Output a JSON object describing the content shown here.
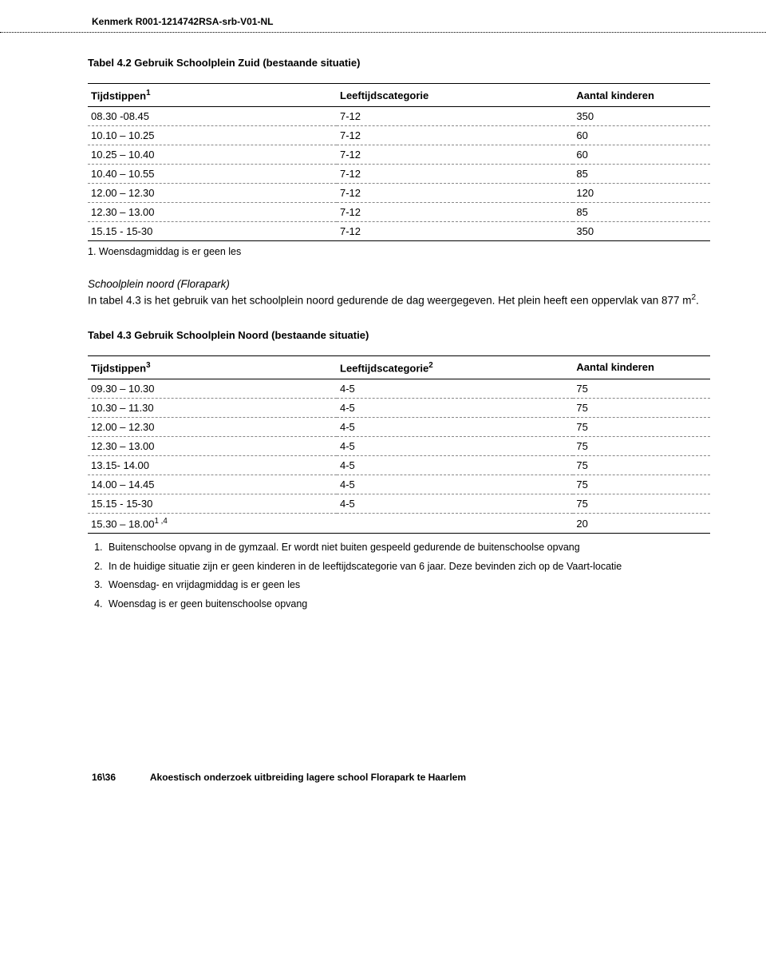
{
  "header_ref": "Kenmerk R001-1214742RSA-srb-V01-NL",
  "table1": {
    "title": "Tabel 4.2 Gebruik Schoolplein Zuid (bestaande situatie)",
    "columns": [
      "Tijdstippen",
      "Leeftijdscategorie",
      "Aantal kinderen"
    ],
    "col0_sup": "1",
    "rows": [
      [
        "08.30 -08.45",
        "7-12",
        "350"
      ],
      [
        "10.10 – 10.25",
        "7-12",
        "60"
      ],
      [
        "10.25 – 10.40",
        "7-12",
        "60"
      ],
      [
        "10.40 – 10.55",
        "7-12",
        "85"
      ],
      [
        "12.00 – 12.30",
        "7-12",
        "120"
      ],
      [
        "12.30 – 13.00",
        "7-12",
        "85"
      ],
      [
        "15.15 - 15-30",
        "7-12",
        "350"
      ]
    ],
    "footnote": "1.   Woensdagmiddag is er geen les"
  },
  "midsection": {
    "heading": "Schoolplein noord (Florapark)",
    "line1": "In tabel 4.3 is het gebruik van het schoolplein noord gedurende de dag weergegeven. Het plein heeft een oppervlak van 877 m",
    "sup": "2",
    "tail": "."
  },
  "table2": {
    "title": "Tabel 4.3 Gebruik Schoolplein Noord (bestaande situatie)",
    "columns": [
      "Tijdstippen",
      "Leeftijdscategorie",
      "Aantal kinderen"
    ],
    "col0_sup": "3",
    "col1_sup": "2",
    "rows": [
      [
        "09.30 – 10.30",
        "4-5",
        "75"
      ],
      [
        "10.30 – 11.30",
        "4-5",
        "75"
      ],
      [
        "12.00 – 12.30",
        "4-5",
        "75"
      ],
      [
        "12.30 – 13.00",
        "4-5",
        "75"
      ],
      [
        "13.15- 14.00",
        "4-5",
        "75"
      ],
      [
        "14.00 – 14.45",
        "4-5",
        "75"
      ],
      [
        "15.15 - 15-30",
        "4-5",
        "75"
      ]
    ],
    "lastrow": {
      "c0_pre": "15.30 – 18.00",
      "c0_sup": "1 ,4",
      "c1": "",
      "c2": "20"
    },
    "notes": [
      "Buitenschoolse opvang in de gymzaal. Er wordt niet buiten gespeeld gedurende de buitenschoolse opvang",
      "In de huidige situatie zijn er geen kinderen in de leeftijdscategorie van 6 jaar. Deze bevinden zich op de Vaart-locatie",
      "Woensdag- en vrijdagmiddag is er geen les",
      "Woensdag is er geen buitenschoolse opvang"
    ]
  },
  "footer": {
    "page": "16\\36",
    "title": "Akoestisch onderzoek uitbreiding lagere school Florapark te Haarlem"
  }
}
